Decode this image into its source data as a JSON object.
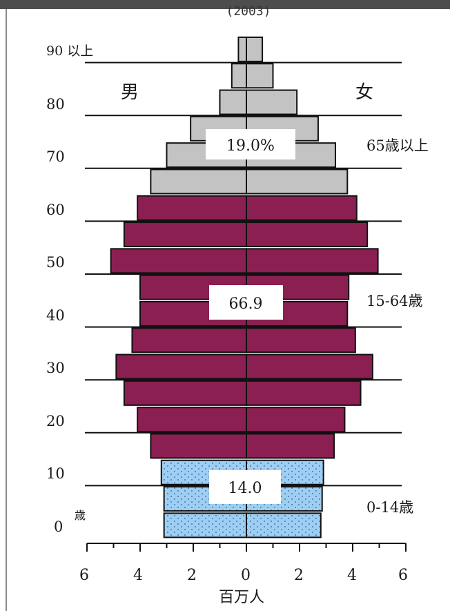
{
  "year_label": "(2003)",
  "colors": {
    "age_65_plus": "#c3c3c3",
    "age_15_64": "#8b1f52",
    "age_0_14": "#9dcef3",
    "dots": "#3a5b8a",
    "frame": "#111111"
  },
  "chart_data": {
    "type": "bar",
    "orientation": "horizontal",
    "subtype": "population-pyramid",
    "year": "(2003)",
    "xlabel": "百万人",
    "x_ticks": [
      "6",
      "4",
      "2",
      "0",
      "2",
      "4",
      "6"
    ],
    "xlim": [
      -6,
      6
    ],
    "y_ticks": [
      "0",
      "10",
      "20",
      "30",
      "40",
      "50",
      "60",
      "70",
      "80",
      "90"
    ],
    "y_unit": "歳",
    "top_group_label": "90 以上",
    "left_label": "男",
    "right_label": "女",
    "groups": [
      {
        "name": "65歳以上",
        "share": "19.0%",
        "color_key": "age_65_plus"
      },
      {
        "name": "15-64歳",
        "share": "66.9",
        "color_key": "age_15_64"
      },
      {
        "name": "0-14歳",
        "share": "14.0",
        "color_key": "age_0_14"
      }
    ],
    "bars": [
      {
        "age_from": 0,
        "male": 3.1,
        "female": 2.8,
        "group": "age_0_14"
      },
      {
        "age_from": 5,
        "male": 3.1,
        "female": 2.85,
        "group": "age_0_14"
      },
      {
        "age_from": 10,
        "male": 3.2,
        "female": 2.9,
        "group": "age_0_14"
      },
      {
        "age_from": 15,
        "male": 3.6,
        "female": 3.3,
        "group": "age_15_64"
      },
      {
        "age_from": 20,
        "male": 4.1,
        "female": 3.7,
        "group": "age_15_64"
      },
      {
        "age_from": 25,
        "male": 4.6,
        "female": 4.3,
        "group": "age_15_64"
      },
      {
        "age_from": 30,
        "male": 4.9,
        "female": 4.75,
        "group": "age_15_64"
      },
      {
        "age_from": 35,
        "male": 4.3,
        "female": 4.1,
        "group": "age_15_64"
      },
      {
        "age_from": 40,
        "male": 4.0,
        "female": 3.8,
        "group": "age_15_64"
      },
      {
        "age_from": 45,
        "male": 4.0,
        "female": 3.85,
        "group": "age_15_64"
      },
      {
        "age_from": 50,
        "male": 5.1,
        "female": 4.95,
        "group": "age_15_64"
      },
      {
        "age_from": 55,
        "male": 4.6,
        "female": 4.55,
        "group": "age_15_64"
      },
      {
        "age_from": 60,
        "male": 4.1,
        "female": 4.15,
        "group": "age_15_64"
      },
      {
        "age_from": 65,
        "male": 3.6,
        "female": 3.8,
        "group": "age_65_plus"
      },
      {
        "age_from": 70,
        "male": 3.0,
        "female": 3.35,
        "group": "age_65_plus"
      },
      {
        "age_from": 75,
        "male": 2.1,
        "female": 2.7,
        "group": "age_65_plus"
      },
      {
        "age_from": 80,
        "male": 1.0,
        "female": 1.9,
        "group": "age_65_plus"
      },
      {
        "age_from": 85,
        "male": 0.55,
        "female": 1.0,
        "group": "age_65_plus"
      },
      {
        "age_from": 90,
        "male": 0.3,
        "female": 0.6,
        "group": "age_65_plus"
      }
    ]
  }
}
